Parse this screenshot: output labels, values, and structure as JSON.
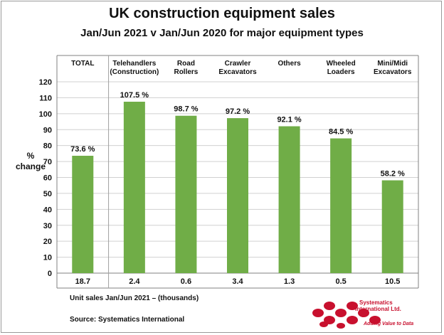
{
  "title": "UK construction equipment sales",
  "subtitle": "Jan/Jun 2021  v  Jan/Jun 2020 for major equipment types",
  "ylabel": [
    "%",
    "change"
  ],
  "footnote_units": "Unit sales Jan/Jun 2021 – (thousands)",
  "source": "Source: Systematics International",
  "logo": {
    "name_line1": "Systematics",
    "name_line2": "International Ltd.",
    "tagline": "Adding Value to Data"
  },
  "colors": {
    "bar": "#70ad47",
    "grid": "#d0d0d0",
    "logo": "#c8102e"
  },
  "chart_data": {
    "type": "bar",
    "title": "UK construction equipment sales",
    "subtitle": "Jan/Jun 2021  v  Jan/Jun 2020 for major equipment types",
    "ylabel": "% change",
    "xlabel": "",
    "ylim": [
      0,
      120
    ],
    "yticks": [
      0,
      10,
      20,
      30,
      40,
      50,
      60,
      70,
      80,
      90,
      100,
      110,
      120
    ],
    "grid": true,
    "categories": [
      [
        "TOTAL"
      ],
      [
        "Telehandlers",
        "(Construction)"
      ],
      [
        "Road",
        "Rollers"
      ],
      [
        "Crawler",
        "Excavators"
      ],
      [
        "Others"
      ],
      [
        "Wheeled",
        "Loaders"
      ],
      [
        "Mini/Midi",
        "Excavators"
      ]
    ],
    "values": [
      73.6,
      107.5,
      98.7,
      97.2,
      92.1,
      84.5,
      58.2
    ],
    "value_labels": [
      "73.6 %",
      "107.5 %",
      "98.7 %",
      "97.2 %",
      "92.1 %",
      "84.5 %",
      "58.2 %"
    ],
    "unit_sales_thousands": [
      "18.7",
      "2.4",
      "0.6",
      "3.4",
      "1.3",
      "0.5",
      "10.5"
    ]
  }
}
